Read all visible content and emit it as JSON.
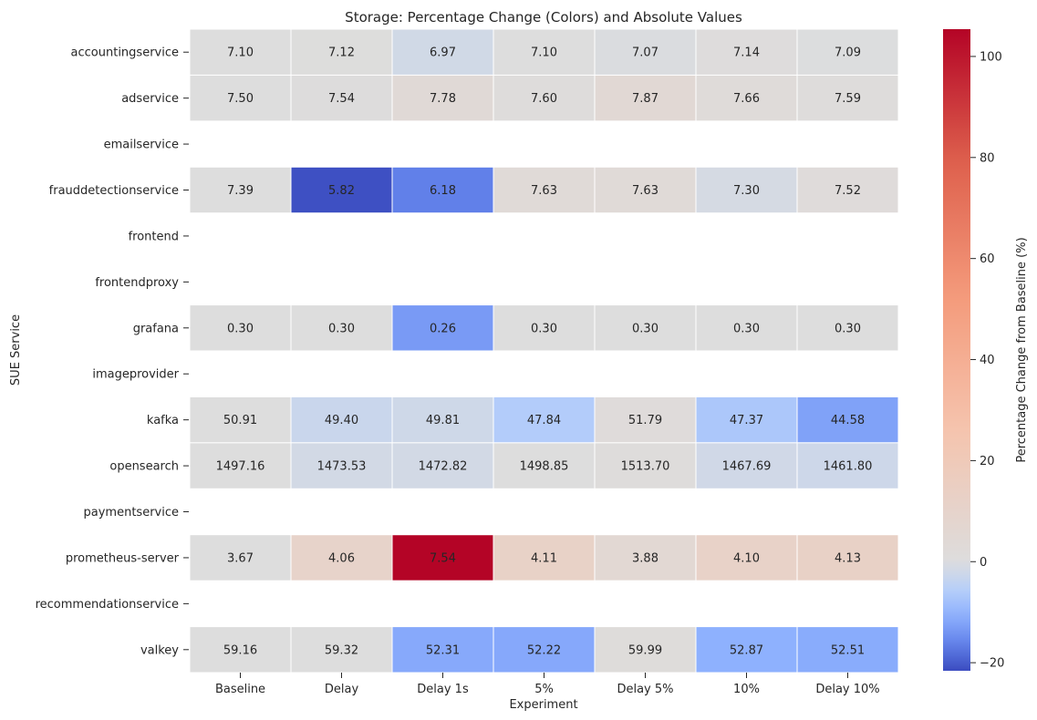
{
  "chart_data": {
    "type": "heatmap",
    "title": "Storage: Percentage Change (Colors) and Absolute Values",
    "xlabel": "Experiment",
    "ylabel": "SUE Service",
    "columns": [
      "Baseline",
      "Delay",
      "Delay 1s",
      "5%",
      "Delay 5%",
      "10%",
      "Delay 10%"
    ],
    "rows": [
      {
        "name": "accountingservice",
        "values": [
          7.1,
          7.12,
          6.97,
          7.1,
          7.07,
          7.14,
          7.09
        ]
      },
      {
        "name": "adservice",
        "values": [
          7.5,
          7.54,
          7.78,
          7.6,
          7.87,
          7.66,
          7.59
        ]
      },
      {
        "name": "emailservice",
        "values": null
      },
      {
        "name": "frauddetectionservice",
        "values": [
          7.39,
          5.82,
          6.18,
          7.63,
          7.63,
          7.3,
          7.52
        ]
      },
      {
        "name": "frontend",
        "values": null
      },
      {
        "name": "frontendproxy",
        "values": null
      },
      {
        "name": "grafana",
        "values": [
          0.3,
          0.3,
          0.26,
          0.3,
          0.3,
          0.3,
          0.3
        ]
      },
      {
        "name": "imageprovider",
        "values": null
      },
      {
        "name": "kafka",
        "values": [
          50.91,
          49.4,
          49.81,
          47.84,
          51.79,
          47.37,
          44.58
        ]
      },
      {
        "name": "opensearch",
        "values": [
          1497.16,
          1473.53,
          1472.82,
          1498.85,
          1513.7,
          1467.69,
          1461.8
        ]
      },
      {
        "name": "paymentservice",
        "values": null
      },
      {
        "name": "prometheus-server",
        "values": [
          3.67,
          4.06,
          7.54,
          4.11,
          3.88,
          4.1,
          4.13
        ]
      },
      {
        "name": "recommendationservice",
        "values": null
      },
      {
        "name": "valkey",
        "values": [
          59.16,
          59.32,
          52.31,
          52.22,
          59.99,
          52.87,
          52.51
        ]
      }
    ],
    "color_encoding": "percentage change from Baseline column",
    "colormap": "coolwarm",
    "colorbar": {
      "label": "Percentage Change from Baseline (%)",
      "range": [
        -21.6,
        105.4
      ],
      "ticks": [
        -20,
        0,
        20,
        40,
        60,
        80,
        100
      ]
    },
    "grid_line_color": "#ffffff"
  }
}
